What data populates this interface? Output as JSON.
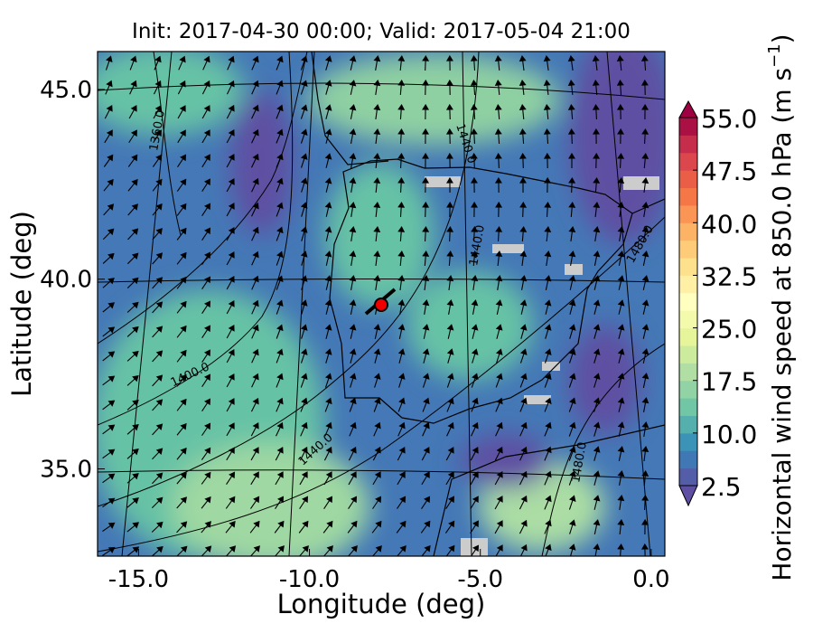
{
  "chart_data": {
    "type": "map",
    "title": "Init: 2017-04-30 00:00; Valid: 2017-05-04 21:00",
    "x_label": "Longitude (deg)",
    "y_label": "Latitude (deg)",
    "xlim": [
      -16.2,
      0.4
    ],
    "ylim": [
      32.7,
      46.0
    ],
    "xticks": [
      {
        "value": -15,
        "label": "-15.0"
      },
      {
        "value": -10,
        "label": "-10.0"
      },
      {
        "value": -5,
        "label": "-5.0"
      },
      {
        "value": 0,
        "label": "0.0"
      }
    ],
    "yticks": [
      {
        "value": 35,
        "label": "35.0"
      },
      {
        "value": 40,
        "label": "40.0"
      },
      {
        "value": 45,
        "label": "45.0"
      }
    ],
    "colorbar": {
      "label": "Horizontal wind speed at 850.0 hPa (m s",
      "label_exponent": "−1",
      "label_end": ")",
      "lim": [
        2.5,
        55
      ],
      "ticks": [
        {
          "value": 2.5,
          "label": "2.5"
        },
        {
          "value": 10,
          "label": "10.0"
        },
        {
          "value": 17.5,
          "label": "17.5"
        },
        {
          "value": 25,
          "label": "25.0"
        },
        {
          "value": 32.5,
          "label": "32.5"
        },
        {
          "value": 40,
          "label": "40.0"
        },
        {
          "value": 47.5,
          "label": "47.5"
        },
        {
          "value": 55,
          "label": "55.0"
        }
      ]
    },
    "contour_labels": [
      "1360.0",
      "1400.0",
      "1440.0",
      "1440.0",
      "1440.0",
      "1480.0",
      "1480.0"
    ]
  }
}
